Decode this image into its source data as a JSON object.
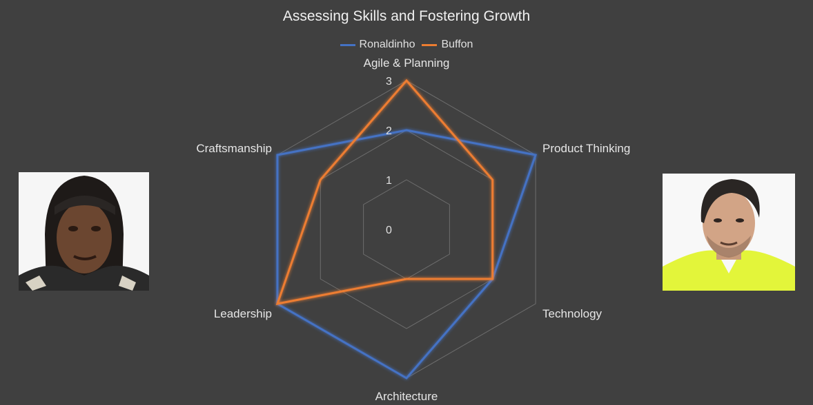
{
  "chart_data": {
    "type": "radar",
    "title": "Assessing Skills and Fostering Growth",
    "axes": [
      "Agile & Planning",
      "Product Thinking",
      "Technology",
      "Architecture",
      "Leadership",
      "Craftsmanship"
    ],
    "rlim": [
      0,
      3
    ],
    "ticks": [
      "0",
      "1",
      "2",
      "3"
    ],
    "grid": true,
    "legend_position": "top",
    "series": [
      {
        "name": "Ronaldinho",
        "color": "#4472c4",
        "values": [
          2,
          3,
          2,
          3,
          3,
          3
        ]
      },
      {
        "name": "Buffon",
        "color": "#ed7d31",
        "values": [
          3,
          2,
          2,
          1,
          3,
          2
        ]
      }
    ]
  },
  "photos": {
    "left": {
      "icon": "ronaldinho-portrait"
    },
    "right": {
      "icon": "buffon-portrait"
    }
  }
}
